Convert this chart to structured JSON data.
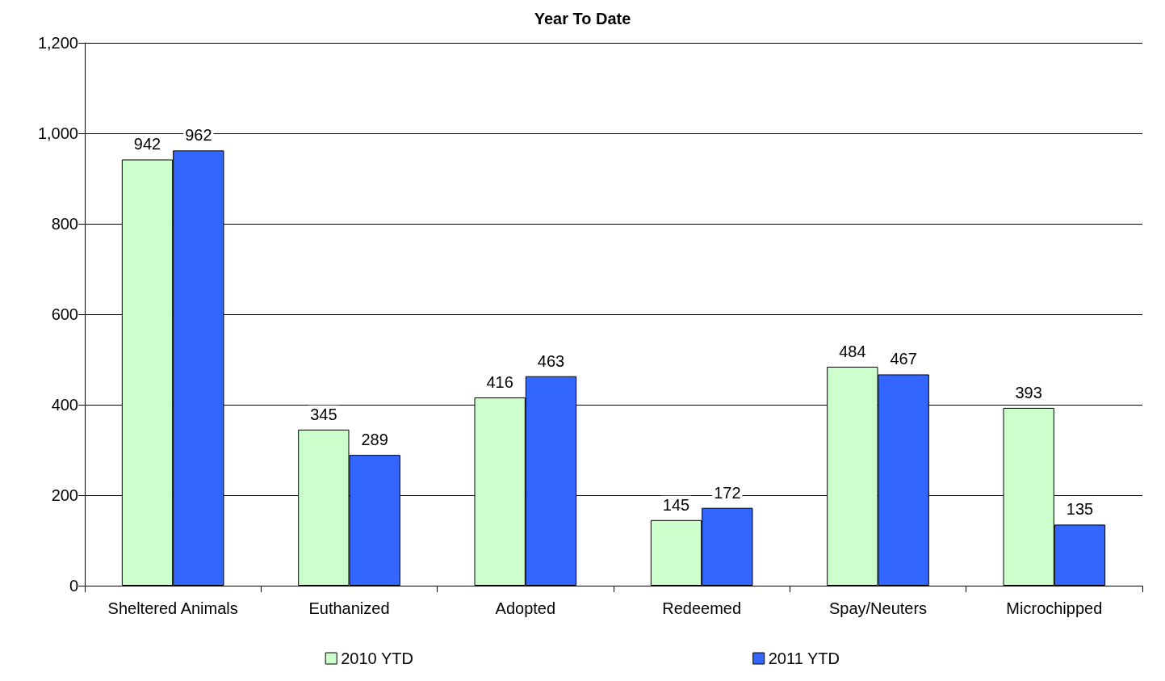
{
  "chart_data": {
    "type": "bar",
    "title": "Year To Date",
    "categories": [
      "Sheltered Animals",
      "Euthanized",
      "Adopted",
      "Redeemed",
      "Spay/Neuters",
      "Microchipped"
    ],
    "series": [
      {
        "name": "2010 YTD",
        "color": "#ccffcc",
        "values": [
          942,
          345,
          416,
          145,
          484,
          393
        ]
      },
      {
        "name": "2011 YTD",
        "color": "#3366ff",
        "values": [
          962,
          289,
          463,
          172,
          467,
          135
        ]
      }
    ],
    "ylim": [
      0,
      1200
    ],
    "yticks": [
      {
        "value": 0,
        "label": "0"
      },
      {
        "value": 200,
        "label": "200"
      },
      {
        "value": 400,
        "label": "400"
      },
      {
        "value": 600,
        "label": "600"
      },
      {
        "value": 800,
        "label": "800"
      },
      {
        "value": 1000,
        "label": "1,000"
      },
      {
        "value": 1200,
        "label": "1,200"
      }
    ],
    "grid": "y",
    "legend": "bottom",
    "data_labels": true
  }
}
